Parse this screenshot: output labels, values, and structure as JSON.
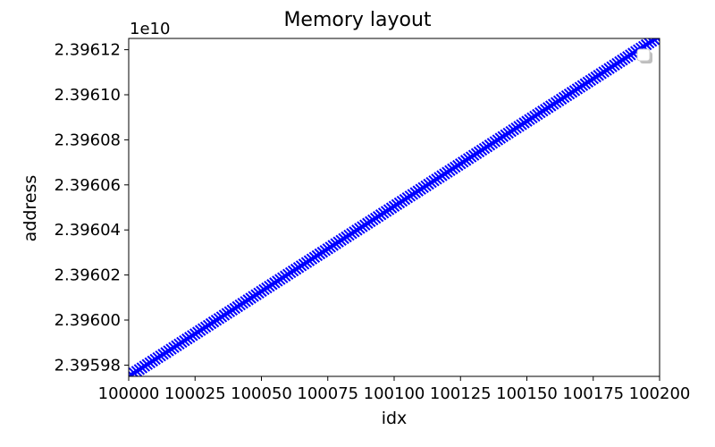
{
  "chart_data": {
    "type": "scatter",
    "title": "Memory layout",
    "xlabel": "idx",
    "ylabel": "address",
    "y_offset_label": "1e10",
    "xlim": [
      100000,
      100200
    ],
    "ylim": [
      23959750000,
      23961250000
    ],
    "xticks": [
      100000,
      100025,
      100050,
      100075,
      100100,
      100125,
      100150,
      100175,
      100200
    ],
    "xtick_labels": [
      "100000",
      "100025",
      "100050",
      "100075",
      "100100",
      "100125",
      "100150",
      "100175",
      "100200"
    ],
    "yticks": [
      23959800000,
      23960000000,
      23960200000,
      23960400000,
      23960600000,
      23960800000,
      23961000000,
      23961200000
    ],
    "ytick_labels": [
      "2.39598",
      "2.39600",
      "2.39602",
      "2.39604",
      "2.39606",
      "2.39608",
      "2.39610",
      "2.39612"
    ],
    "marker": "x",
    "marker_color": "#0000ff",
    "grid": false,
    "legend": "upper right, empty",
    "series": [
      {
        "x": {
          "start": 100000,
          "end": 100200,
          "step": 1
        },
        "y": {
          "start": 23959750000,
          "end": 23961260000
        }
      }
    ]
  }
}
